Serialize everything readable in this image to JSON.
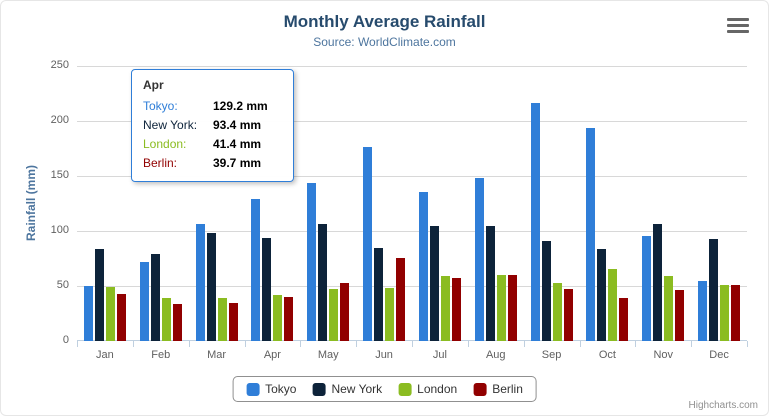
{
  "header": {
    "title": "Monthly Average Rainfall",
    "subtitle": "Source: WorldClimate.com"
  },
  "chart_data": {
    "type": "bar",
    "title": "Monthly Average Rainfall",
    "subtitle": "Source: WorldClimate.com",
    "xlabel": "",
    "ylabel": "Rainfall (mm)",
    "ylim": [
      0,
      250
    ],
    "yticks": [
      0,
      50,
      100,
      150,
      200,
      250
    ],
    "grid": true,
    "legend_position": "bottom-center",
    "categories": [
      "Jan",
      "Feb",
      "Mar",
      "Apr",
      "May",
      "Jun",
      "Jul",
      "Aug",
      "Sep",
      "Oct",
      "Nov",
      "Dec"
    ],
    "series": [
      {
        "name": "Tokyo",
        "color": "#2f7ed8",
        "values": [
          49.9,
          71.5,
          106.4,
          129.2,
          144.0,
          176.0,
          135.6,
          148.5,
          216.4,
          194.1,
          95.6,
          54.4
        ]
      },
      {
        "name": "New York",
        "color": "#0d233a",
        "values": [
          83.6,
          78.8,
          98.5,
          93.4,
          106.0,
          84.5,
          105.0,
          104.3,
          91.2,
          83.5,
          106.6,
          92.3
        ]
      },
      {
        "name": "London",
        "color": "#8bbc21",
        "values": [
          48.9,
          38.8,
          39.3,
          41.4,
          47.0,
          48.3,
          59.0,
          59.6,
          52.4,
          65.2,
          59.3,
          51.2
        ]
      },
      {
        "name": "Berlin",
        "color": "#910000",
        "values": [
          42.4,
          33.2,
          34.5,
          39.7,
          52.6,
          75.5,
          57.4,
          60.4,
          47.6,
          39.1,
          46.8,
          51.1
        ]
      }
    ]
  },
  "tooltip": {
    "category": "Apr",
    "border_color": "#2f7ed8",
    "rows": [
      {
        "label": "Tokyo:",
        "value": "129.2 mm",
        "color": "#2f7ed8"
      },
      {
        "label": "New York:",
        "value": "93.4 mm",
        "color": "#0d233a"
      },
      {
        "label": "London:",
        "value": "41.4 mm",
        "color": "#8bbc21"
      },
      {
        "label": "Berlin:",
        "value": "39.7 mm",
        "color": "#910000"
      }
    ]
  },
  "credits": "Highcharts.com",
  "colors": {
    "title": "#274b6d",
    "subtitle": "#4d759e",
    "axis_label": "#606060",
    "gridline": "#d8d8d8",
    "axis_line": "#c0d0e0",
    "legend_border": "#909090"
  }
}
